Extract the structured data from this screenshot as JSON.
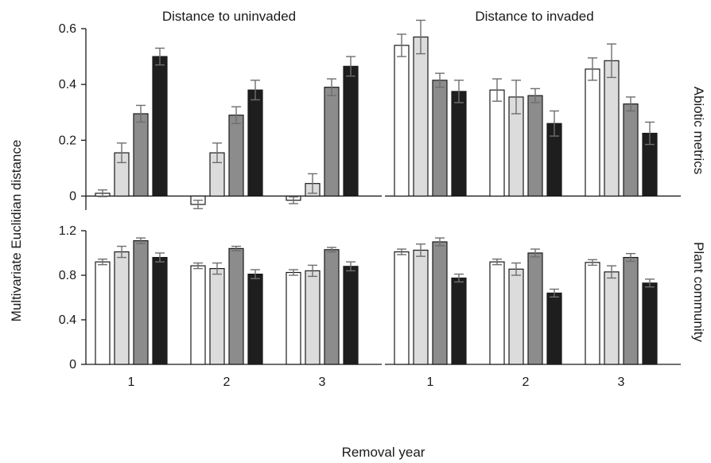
{
  "chart_data": {
    "type": "bar",
    "xlabel": "Removal year",
    "ylabel": "Multivariate Euclidian distance",
    "column_titles": [
      "Distance to uninvaded",
      "Distance to invaded"
    ],
    "row_labels": [
      "Abiotic metrics",
      "Plant community"
    ],
    "categories": [
      "1",
      "2",
      "3"
    ],
    "series_colors": [
      "#ffffff",
      "#dcdcdc",
      "#8c8c8c",
      "#1e1e1e"
    ],
    "rows": [
      {
        "label": "Abiotic metrics",
        "ylim": [
          -0.05,
          0.6
        ],
        "ticks": [
          0,
          0.2,
          0.4,
          0.6
        ],
        "tick_labels": [
          "0",
          "0.2",
          "0.4",
          "0.6"
        ],
        "panels": [
          {
            "title": "Distance to uninvaded",
            "values": [
              [
                0.01,
                0.155,
                0.295,
                0.5
              ],
              [
                -0.03,
                0.155,
                0.29,
                0.38
              ],
              [
                -0.015,
                0.045,
                0.39,
                0.465
              ]
            ],
            "errors": [
              [
                0.012,
                0.035,
                0.03,
                0.03
              ],
              [
                0.015,
                0.035,
                0.03,
                0.035
              ],
              [
                0.012,
                0.035,
                0.03,
                0.035
              ]
            ]
          },
          {
            "title": "Distance to invaded",
            "values": [
              [
                0.54,
                0.57,
                0.415,
                0.375
              ],
              [
                0.38,
                0.355,
                0.36,
                0.26
              ],
              [
                0.455,
                0.485,
                0.33,
                0.225
              ]
            ],
            "errors": [
              [
                0.04,
                0.06,
                0.025,
                0.04
              ],
              [
                0.04,
                0.06,
                0.025,
                0.045
              ],
              [
                0.04,
                0.06,
                0.025,
                0.04
              ]
            ]
          }
        ]
      },
      {
        "label": "Plant community",
        "ylim": [
          0,
          1.2
        ],
        "ticks": [
          0,
          0.4,
          0.8,
          1.2
        ],
        "tick_labels": [
          "0",
          "0.4",
          "0.8",
          "1.2"
        ],
        "panels": [
          {
            "title": "Distance to uninvaded",
            "values": [
              [
                0.92,
                1.01,
                1.11,
                0.96
              ],
              [
                0.885,
                0.86,
                1.04,
                0.81
              ],
              [
                0.825,
                0.84,
                1.03,
                0.88
              ]
            ],
            "errors": [
              [
                0.025,
                0.05,
                0.025,
                0.04
              ],
              [
                0.025,
                0.05,
                0.02,
                0.04
              ],
              [
                0.025,
                0.05,
                0.02,
                0.04
              ]
            ]
          },
          {
            "title": "Distance to invaded",
            "values": [
              [
                1.01,
                1.025,
                1.1,
                0.775
              ],
              [
                0.92,
                0.855,
                1.0,
                0.64
              ],
              [
                0.915,
                0.83,
                0.96,
                0.73
              ]
            ],
            "errors": [
              [
                0.025,
                0.055,
                0.035,
                0.035
              ],
              [
                0.025,
                0.055,
                0.035,
                0.035
              ],
              [
                0.025,
                0.055,
                0.035,
                0.035
              ]
            ]
          }
        ]
      }
    ]
  }
}
